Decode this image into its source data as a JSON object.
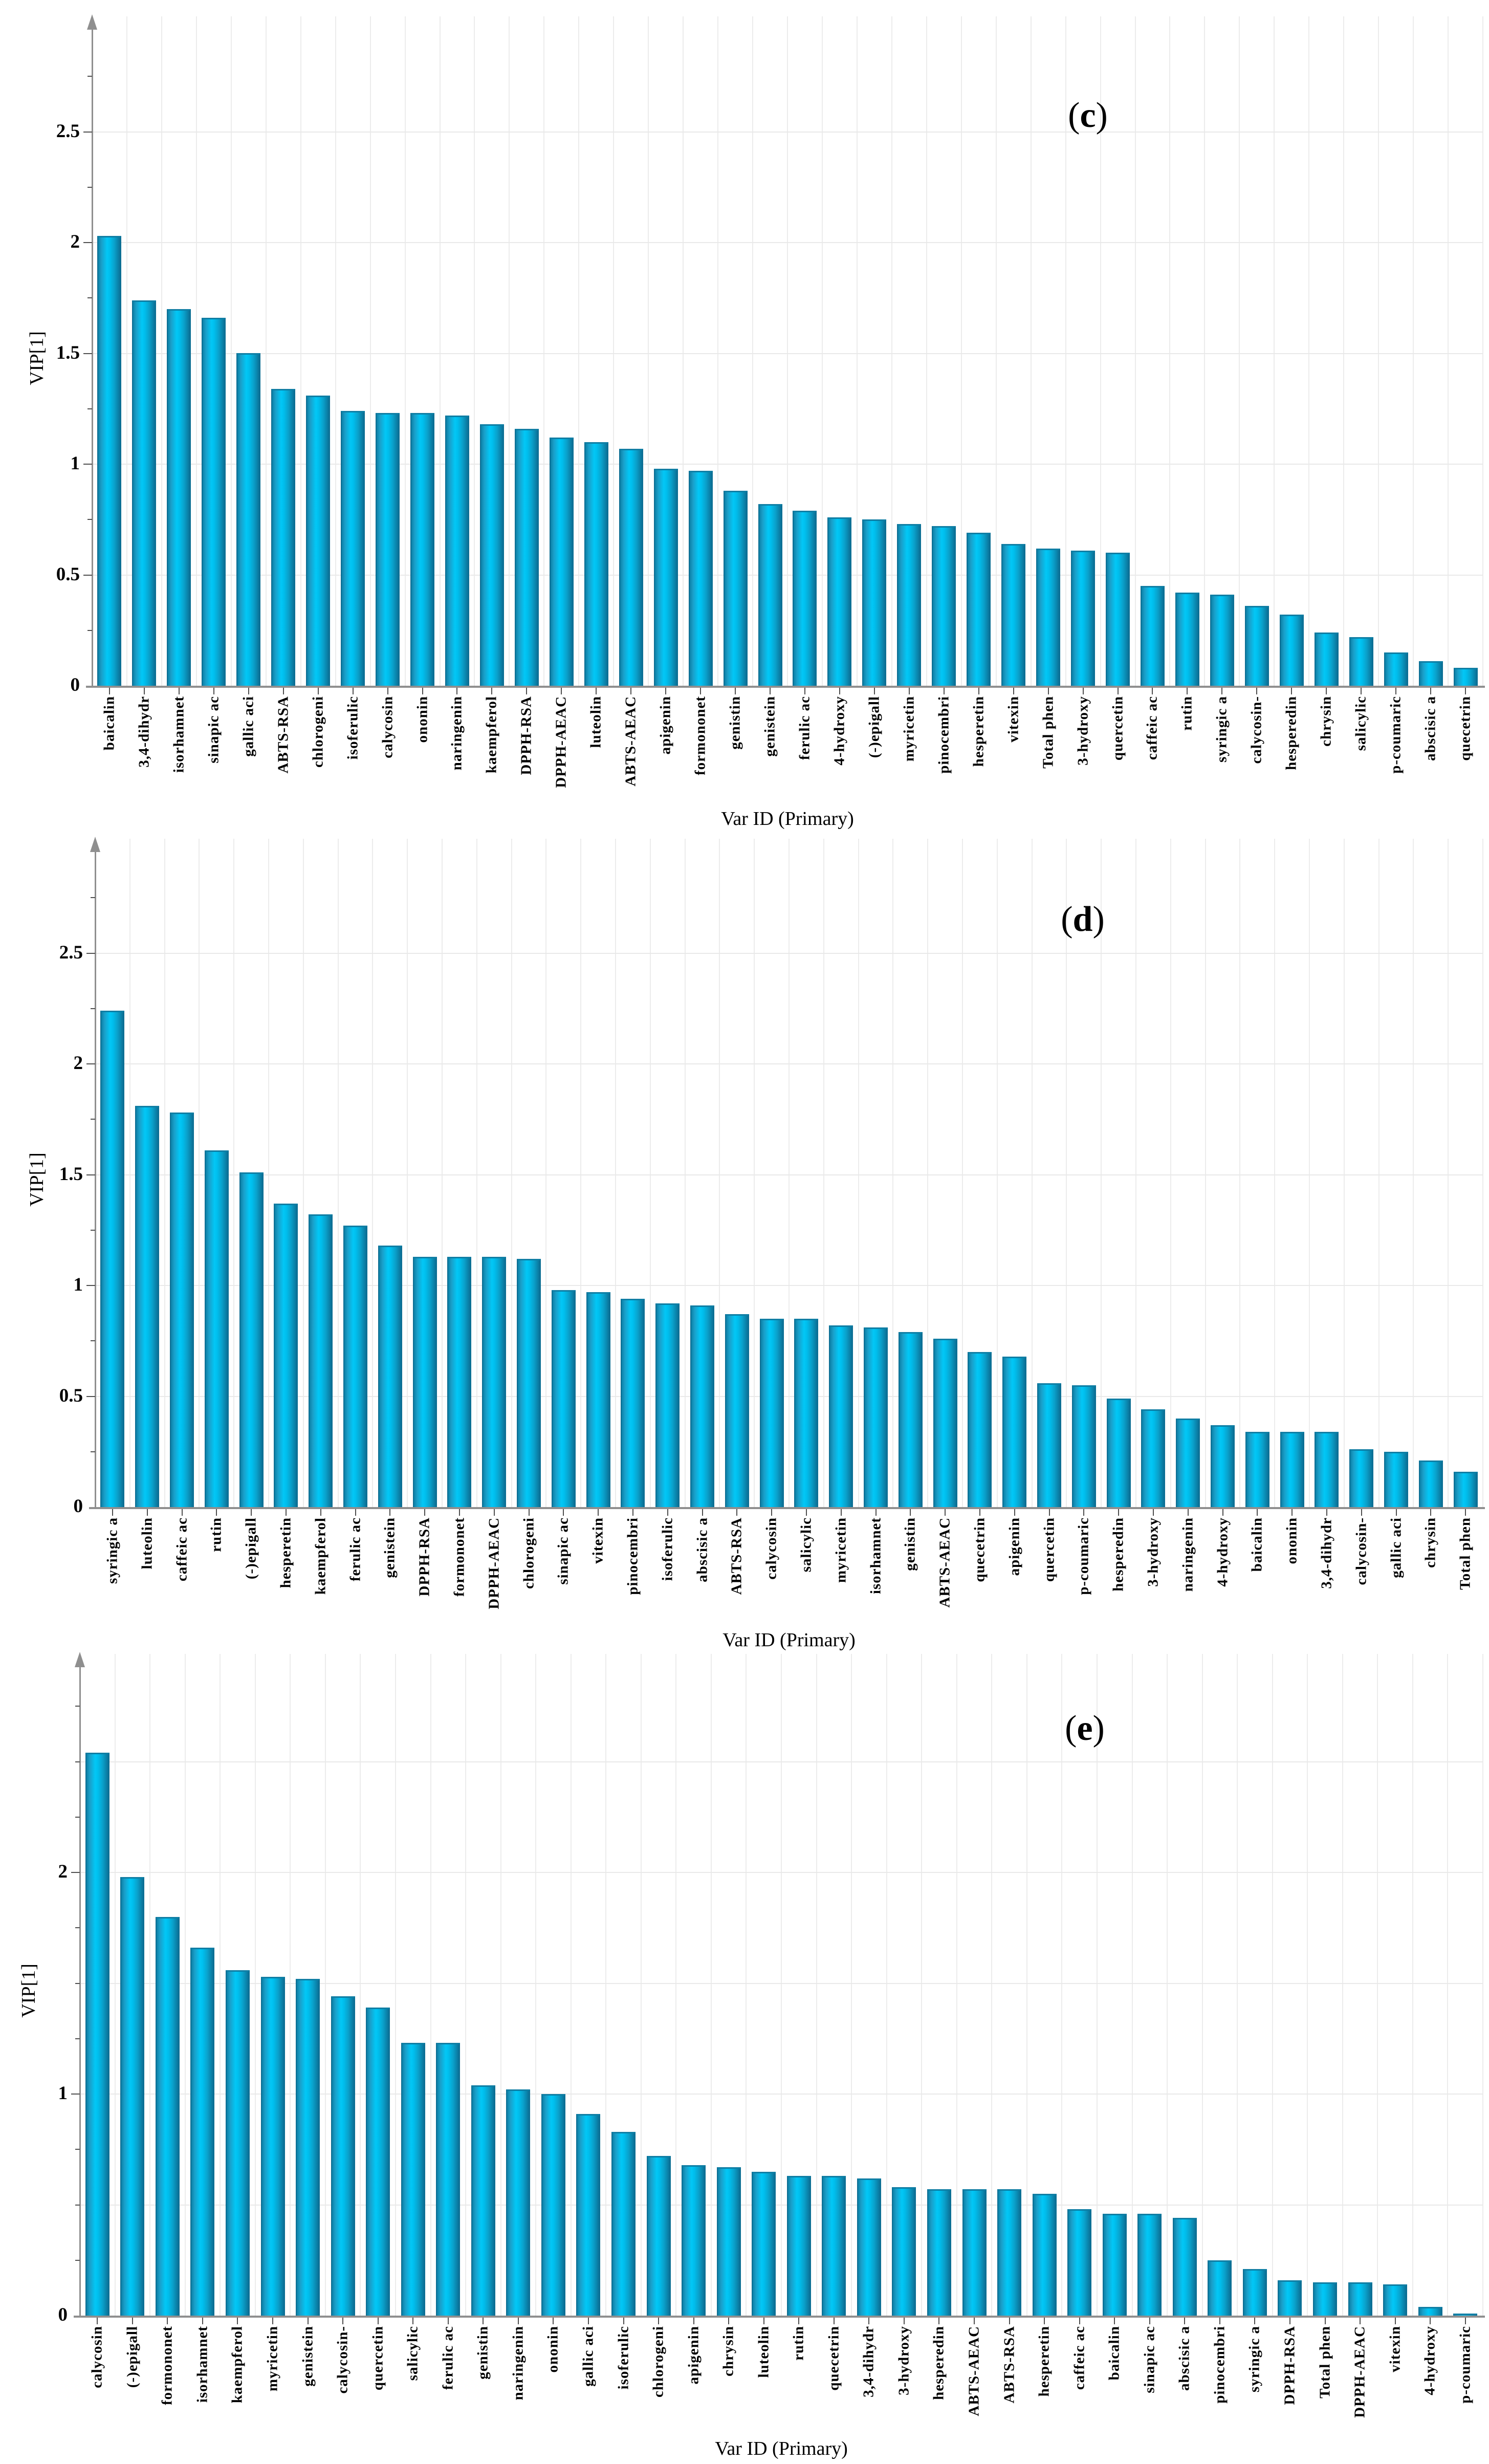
{
  "figure": {
    "x_axis_title": "Var ID (Primary)",
    "y_axis_title": "VIP[1]"
  },
  "colors": {
    "bar_edge": "#0d6f94",
    "bar_mid_highlight": "#02c7f6",
    "bar_side_shade": "#0b7096",
    "gridline": "#ececec",
    "axis": "#8f8f8f",
    "tick": "#4f4f4f",
    "text": "#000000",
    "background": "#ffffff"
  },
  "chart_data": [
    {
      "type": "bar",
      "panel_label": "(c)",
      "xlabel": "Var ID (Primary)",
      "ylabel": "VIP[1]",
      "ylim": [
        0,
        2.9
      ],
      "grid": true,
      "legend": "none",
      "ytick_values": [
        0,
        0.5,
        1,
        1.5,
        2,
        2.5
      ],
      "ytick_labels": [
        "0",
        "0.5",
        "1",
        "1.5",
        "2",
        "2.5"
      ],
      "categories": [
        "baicalin",
        "3,4-dihydr",
        "isorhamnet",
        "sinapic ac",
        "gallic aci",
        "ABTS-RSA",
        "chlorogeni",
        "isoferulic",
        "calycosin",
        "ononin",
        "naringenin",
        "kaempferol",
        "DPPH-RSA",
        "DPPH-AEAC",
        "luteolin",
        "ABTS-AEAC",
        "apigenin",
        "formononet",
        "genistin",
        "genistein",
        "ferulic ac",
        "4-hydroxy",
        "(-)epigall",
        "myricetin",
        "pinocembri",
        "hesperetin",
        "vitexin",
        "Total phen",
        "3-hydroxy",
        "quercetin",
        "caffeic ac",
        "rutin",
        "syringic a",
        "calycosin-",
        "hesperedin",
        "chrysin",
        "salicylic",
        "p-coumaric",
        "abscisic a",
        "quecetrin"
      ],
      "values": [
        2.03,
        1.74,
        1.7,
        1.66,
        1.5,
        1.34,
        1.31,
        1.24,
        1.23,
        1.23,
        1.22,
        1.18,
        1.16,
        1.12,
        1.1,
        1.07,
        0.98,
        0.97,
        0.88,
        0.82,
        0.79,
        0.76,
        0.75,
        0.73,
        0.72,
        0.69,
        0.64,
        0.62,
        0.61,
        0.6,
        0.45,
        0.42,
        0.41,
        0.36,
        0.32,
        0.24,
        0.22,
        0.15,
        0.11,
        0.08
      ]
    },
    {
      "type": "bar",
      "panel_label": "(d)",
      "xlabel": "Var ID (Primary)",
      "ylabel": "VIP[1]",
      "ylim": [
        0,
        2.9
      ],
      "grid": true,
      "legend": "none",
      "ytick_values": [
        0,
        0.5,
        1,
        1.5,
        2,
        2.5
      ],
      "ytick_labels": [
        "0",
        "0.5",
        "1",
        "1.5",
        "2",
        "2.5"
      ],
      "categories": [
        "syringic a",
        "luteolin",
        "caffeic ac",
        "rutin",
        "(-)epigall",
        "hesperetin",
        "kaempferol",
        "ferulic ac",
        "genistein",
        "DPPH-RSA",
        "formononet",
        "DPPH-AEAC",
        "chlorogeni",
        "sinapic ac",
        "vitexin",
        "pinocembri",
        "isoferulic",
        "abscisic a",
        "ABTS-RSA",
        "calycosin",
        "salicylic",
        "myricetin",
        "isorhamnet",
        "genistin",
        "ABTS-AEAC",
        "quecetrin",
        "apigenin",
        "quercetin",
        "p-coumaric",
        "hesperedin",
        "3-hydroxy",
        "naringenin",
        "4-hydroxy",
        "baicalin",
        "ononin",
        "3,4-dihydr",
        "calycosin-",
        "gallic aci",
        "chrysin",
        "Total phen"
      ],
      "values": [
        2.24,
        1.81,
        1.78,
        1.61,
        1.51,
        1.37,
        1.32,
        1.27,
        1.18,
        1.13,
        1.13,
        1.13,
        1.12,
        0.98,
        0.97,
        0.94,
        0.92,
        0.91,
        0.87,
        0.85,
        0.85,
        0.82,
        0.81,
        0.79,
        0.76,
        0.7,
        0.68,
        0.56,
        0.55,
        0.49,
        0.44,
        0.4,
        0.37,
        0.34,
        0.34,
        0.34,
        0.26,
        0.25,
        0.21,
        0.16
      ]
    },
    {
      "type": "bar",
      "panel_label": "(e)",
      "xlabel": "Var ID (Primary)",
      "ylabel": "VIP[1]",
      "ylim": [
        0,
        3.0
      ],
      "grid": true,
      "legend": "none",
      "ytick_values": [
        0,
        1,
        2
      ],
      "ytick_labels": [
        "0",
        "1",
        "2"
      ],
      "categories": [
        "calycosin",
        "(-)epigall",
        "formononet",
        "isorhamnet",
        "kaempferol",
        "myricetin",
        "genistein",
        "calycosin-",
        "quercetin",
        "salicylic",
        "ferulic ac",
        "genistin",
        "naringenin",
        "ononin",
        "gallic aci",
        "isoferulic",
        "chlorogeni",
        "apigenin",
        "chrysin",
        "luteolin",
        "rutin",
        "quecetrin",
        "3,4-dihydr",
        "3-hydroxy",
        "hesperedin",
        "ABTS-AEAC",
        "ABTS-RSA",
        "hesperetin",
        "caffeic ac",
        "baicalin",
        "sinapic ac",
        "abscisic a",
        "pinocembri",
        "syringic a",
        "DPPH-RSA",
        "Total phen",
        "DPPH-AEAC",
        "vitexin",
        "4-hydroxy",
        "p-coumaric"
      ],
      "values": [
        2.54,
        1.98,
        1.8,
        1.66,
        1.56,
        1.53,
        1.52,
        1.44,
        1.39,
        1.23,
        1.23,
        1.04,
        1.02,
        1.0,
        0.91,
        0.83,
        0.72,
        0.68,
        0.67,
        0.65,
        0.63,
        0.63,
        0.62,
        0.58,
        0.57,
        0.57,
        0.57,
        0.55,
        0.48,
        0.46,
        0.46,
        0.44,
        0.25,
        0.21,
        0.16,
        0.15,
        0.15,
        0.14,
        0.04,
        0.01
      ]
    }
  ]
}
